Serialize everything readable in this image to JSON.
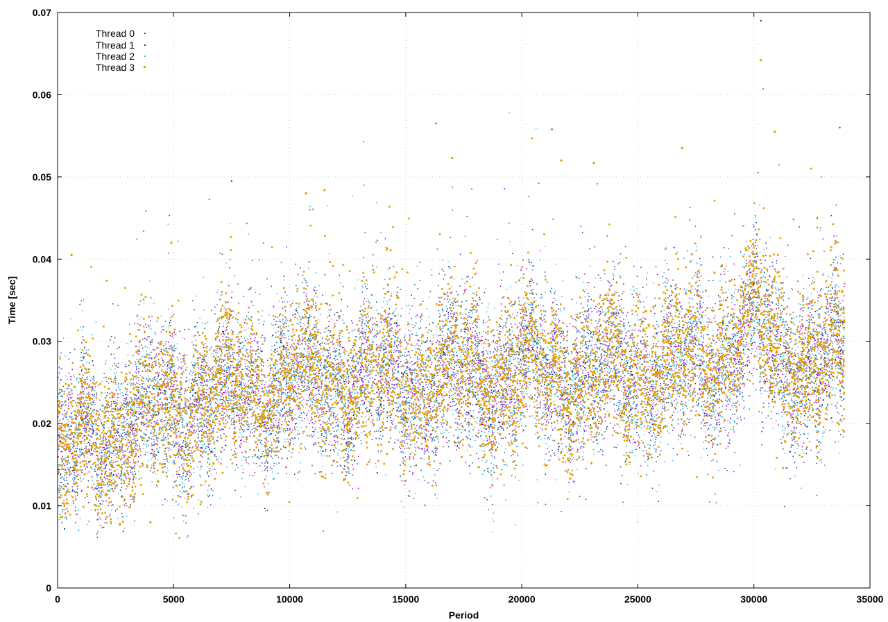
{
  "chart_data": {
    "type": "scatter",
    "title": "",
    "xlabel": "Period",
    "ylabel": "Time [sec]",
    "xlim": [
      0,
      35000
    ],
    "ylim": [
      0,
      0.07
    ],
    "x_ticks": [
      0,
      5000,
      10000,
      15000,
      20000,
      25000,
      30000,
      35000
    ],
    "y_ticks": [
      0,
      0.01,
      0.02,
      0.03,
      0.04,
      0.05,
      0.06,
      0.07
    ],
    "x_tick_labels": [
      "0",
      "5000",
      "10000",
      "15000",
      "20000",
      "25000",
      "30000",
      "35000"
    ],
    "y_tick_labels": [
      "0",
      "0.01",
      "0.02",
      "0.03",
      "0.04",
      "0.05",
      "0.06",
      "0.07"
    ],
    "grid": true,
    "legend_position": "top-left",
    "point_count_per_series": 33900,
    "series": [
      {
        "name": "Thread 0",
        "color": "#9400d3",
        "trend": [
          [
            0,
            0.015
          ],
          [
            1000,
            0.018
          ],
          [
            3000,
            0.02
          ],
          [
            5000,
            0.022
          ],
          [
            8000,
            0.024
          ],
          [
            10000,
            0.025
          ],
          [
            15000,
            0.025
          ],
          [
            20000,
            0.026
          ],
          [
            25000,
            0.026
          ],
          [
            28000,
            0.027
          ],
          [
            30000,
            0.031
          ],
          [
            31000,
            0.028
          ],
          [
            34000,
            0.027
          ]
        ],
        "spread_sd": 0.0045
      },
      {
        "name": "Thread 1",
        "color": "#004a80",
        "trend": [
          [
            0,
            0.015
          ],
          [
            1000,
            0.018
          ],
          [
            3000,
            0.02
          ],
          [
            5000,
            0.022
          ],
          [
            8000,
            0.024
          ],
          [
            10000,
            0.025
          ],
          [
            15000,
            0.025
          ],
          [
            20000,
            0.026
          ],
          [
            25000,
            0.026
          ],
          [
            28000,
            0.027
          ],
          [
            30000,
            0.032
          ],
          [
            31000,
            0.028
          ],
          [
            34000,
            0.027
          ]
        ],
        "spread_sd": 0.0048
      },
      {
        "name": "Thread 2",
        "color": "#33b5e5",
        "trend": [
          [
            0,
            0.015
          ],
          [
            1000,
            0.018
          ],
          [
            3000,
            0.02
          ],
          [
            5000,
            0.022
          ],
          [
            8000,
            0.024
          ],
          [
            10000,
            0.025
          ],
          [
            15000,
            0.025
          ],
          [
            20000,
            0.026
          ],
          [
            25000,
            0.026
          ],
          [
            28000,
            0.027
          ],
          [
            30000,
            0.032
          ],
          [
            31000,
            0.028
          ],
          [
            34000,
            0.027
          ]
        ],
        "spread_sd": 0.005
      },
      {
        "name": "Thread 3",
        "color": "#e69f00",
        "trend": [
          [
            0,
            0.015
          ],
          [
            1000,
            0.018
          ],
          [
            3000,
            0.02
          ],
          [
            5000,
            0.022
          ],
          [
            8000,
            0.024
          ],
          [
            10000,
            0.025
          ],
          [
            15000,
            0.025
          ],
          [
            20000,
            0.026
          ],
          [
            25000,
            0.026
          ],
          [
            28000,
            0.028
          ],
          [
            30000,
            0.033
          ],
          [
            31000,
            0.029
          ],
          [
            34000,
            0.027
          ]
        ],
        "spread_sd": 0.0045
      }
    ],
    "notable_points": [
      {
        "series": "Thread 1",
        "x": 30300,
        "y": 0.069
      },
      {
        "series": "Thread 3",
        "x": 30300,
        "y": 0.0642
      },
      {
        "series": "Thread 2",
        "x": 30400,
        "y": 0.0607
      },
      {
        "series": "Thread 1",
        "x": 16300,
        "y": 0.0565
      },
      {
        "series": "Thread 1",
        "x": 33700,
        "y": 0.056
      },
      {
        "series": "Thread 1",
        "x": 21300,
        "y": 0.0558
      },
      {
        "series": "Thread 3",
        "x": 30900,
        "y": 0.0555
      },
      {
        "series": "Thread 3",
        "x": 26900,
        "y": 0.0535
      },
      {
        "series": "Thread 3",
        "x": 17000,
        "y": 0.0523
      },
      {
        "series": "Thread 3",
        "x": 21700,
        "y": 0.052
      },
      {
        "series": "Thread 3",
        "x": 23100,
        "y": 0.0517
      },
      {
        "series": "Thread 3",
        "x": 11500,
        "y": 0.0484
      },
      {
        "series": "Thread 3",
        "x": 10700,
        "y": 0.048
      },
      {
        "series": "Thread 1",
        "x": 7500,
        "y": 0.0495
      },
      {
        "series": "Thread 3",
        "x": 600,
        "y": 0.0405
      },
      {
        "series": "Thread 3",
        "x": 4900,
        "y": 0.042
      },
      {
        "series": "Thread 2",
        "x": 900,
        "y": 0.007
      },
      {
        "series": "Thread 3",
        "x": 4000,
        "y": 0.008
      },
      {
        "series": "Thread 1",
        "x": 300,
        "y": 0.0072
      }
    ]
  }
}
